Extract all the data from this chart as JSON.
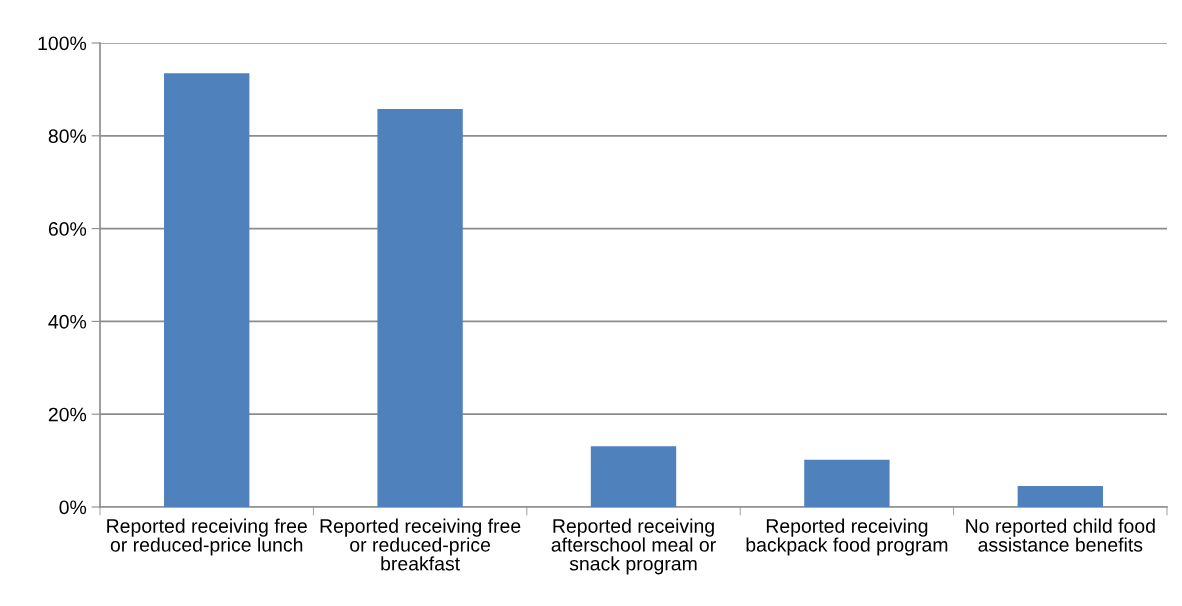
{
  "chart_data": {
    "type": "bar",
    "categories": [
      "Reported receiving free or reduced-price lunch",
      "Reported receiving free or reduced-price breakfast",
      "Reported receiving afterschool meal or snack program",
      "Reported receiving backpack food program",
      "No reported child food assistance benefits"
    ],
    "values": [
      93.5,
      85.8,
      13.1,
      10.2,
      4.5
    ],
    "color": "#4f81bd",
    "ylim": [
      0,
      100
    ],
    "yticks": [
      {
        "value": 0,
        "label": "0%"
      },
      {
        "value": 20,
        "label": "20%"
      },
      {
        "value": 40,
        "label": "40%"
      },
      {
        "value": 60,
        "label": "60%"
      },
      {
        "value": 80,
        "label": "80%"
      },
      {
        "value": 100,
        "label": "100%"
      }
    ],
    "grid": "y"
  }
}
